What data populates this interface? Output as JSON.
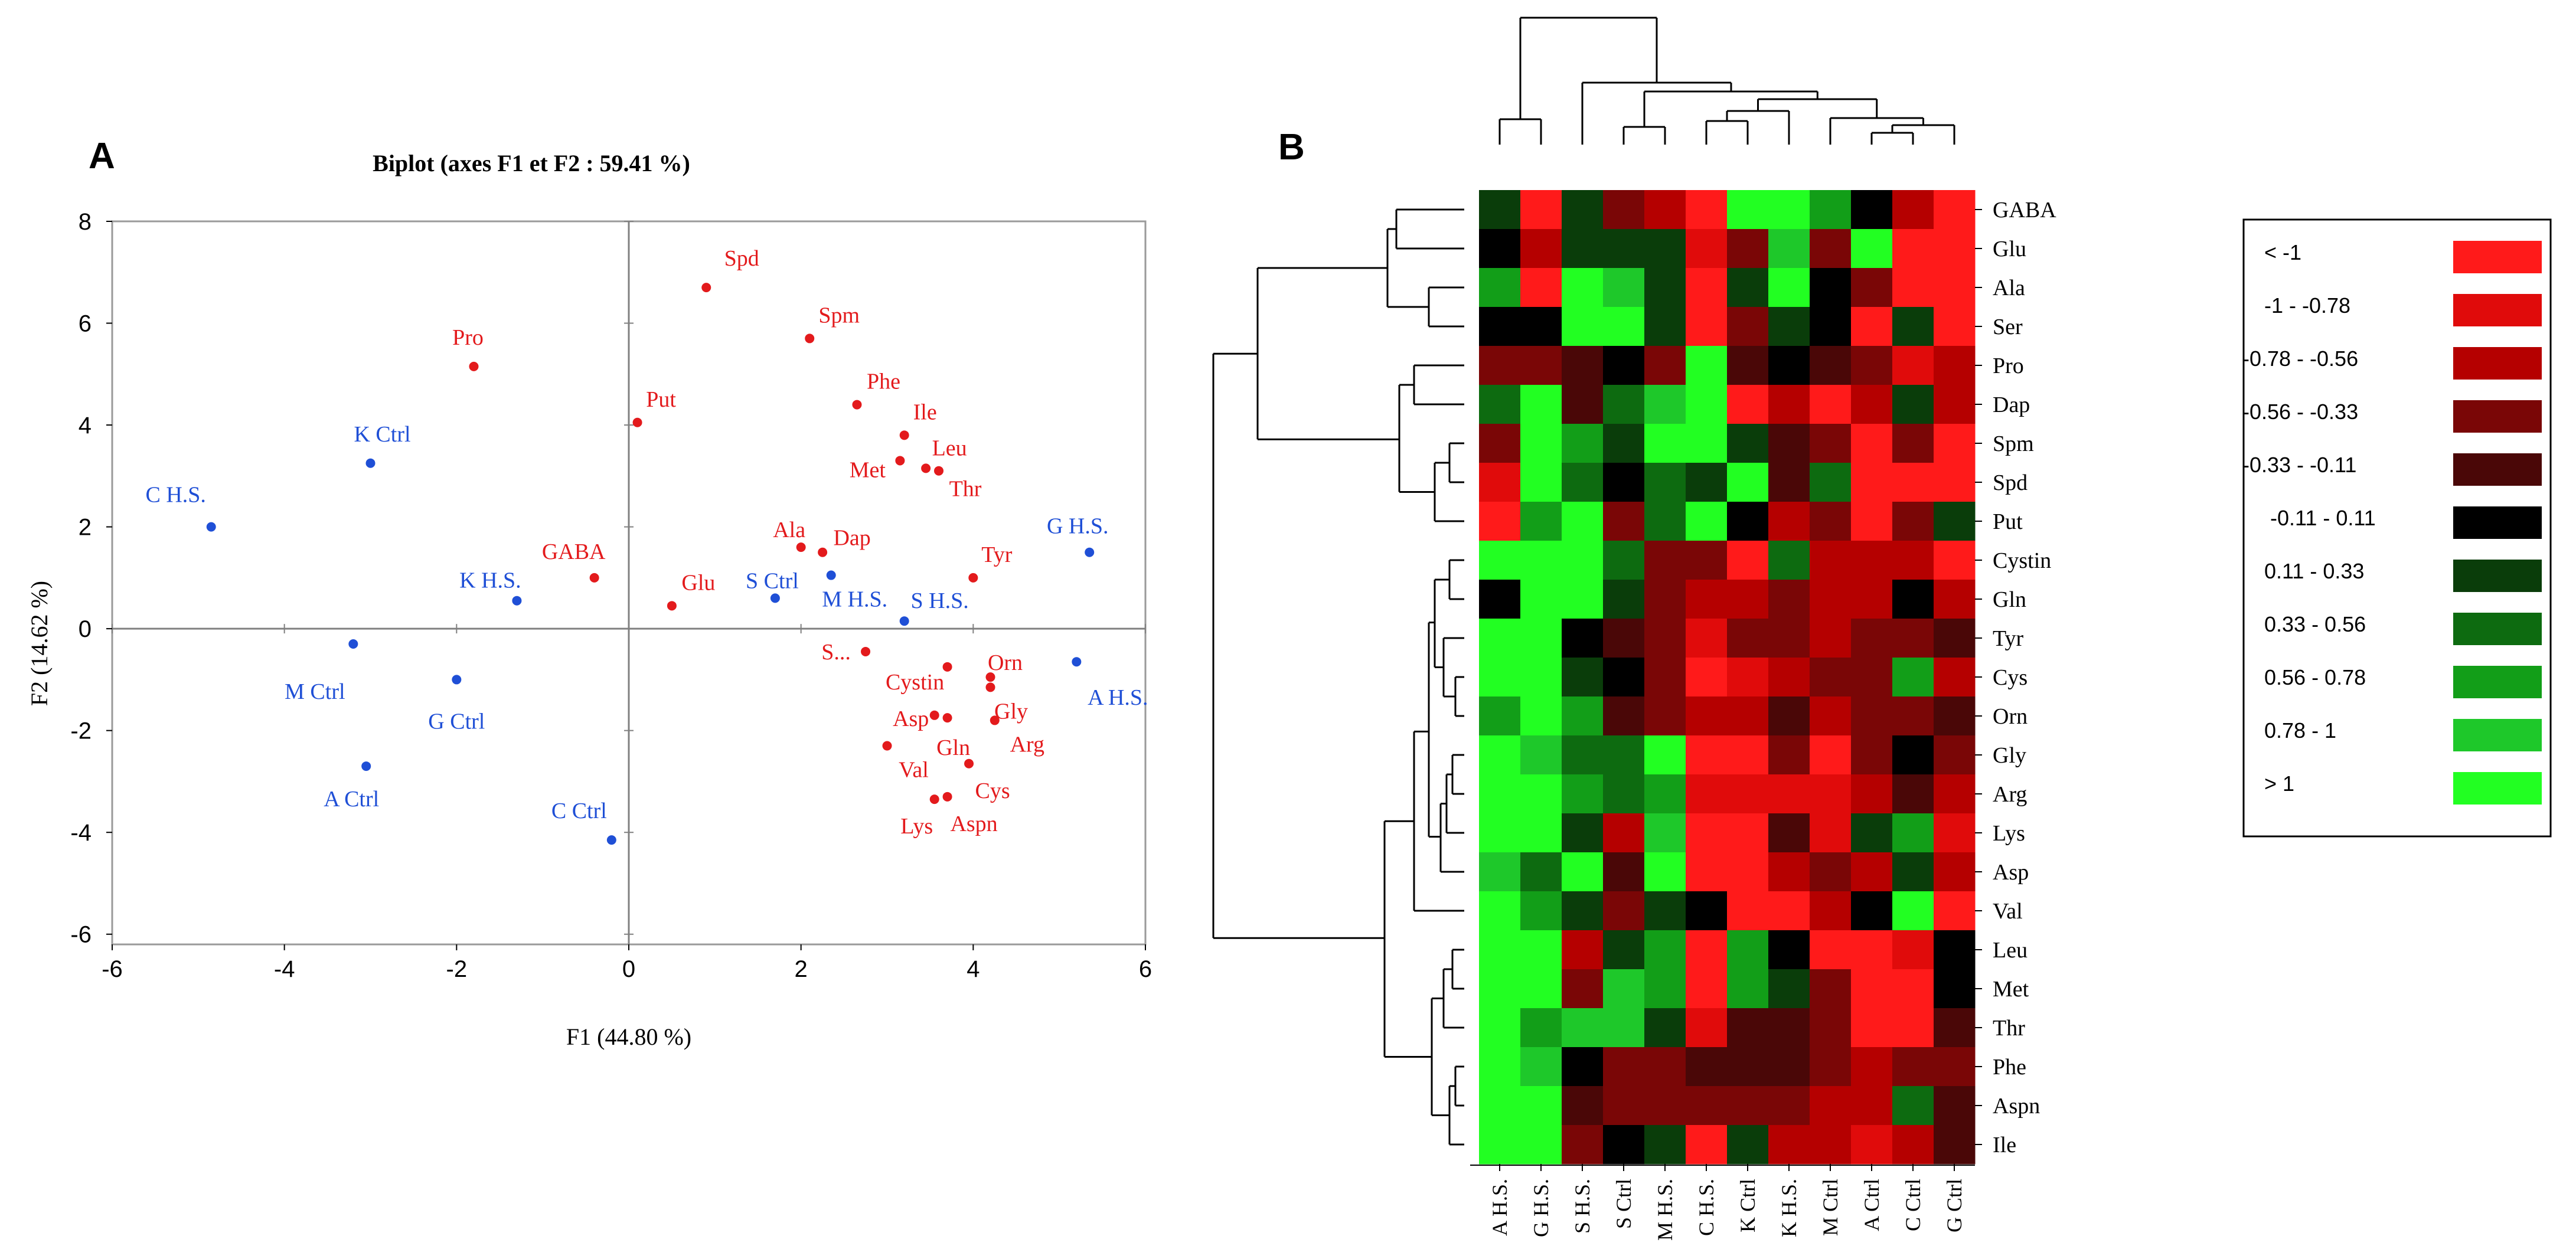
{
  "colors": {
    "observation": "#1f4fd6",
    "variable": "#e31a1c",
    "axis": "#808080",
    "frame": "#9a9a9a",
    "tree": "#000000"
  },
  "chart_data": [
    {
      "panel": "A",
      "type": "scatter",
      "title": "Biplot (axes F1  et F2 : 59.41 %)",
      "xlabel": "F1 (44.80  %)",
      "ylabel": "F2 (14.62  %)",
      "xlim": [
        -6,
        6
      ],
      "ylim": [
        -6.2,
        8
      ],
      "xticks": [
        -6,
        -4,
        -2,
        0,
        2,
        4,
        6
      ],
      "yticks": [
        -6,
        -4,
        -2,
        0,
        2,
        4,
        6,
        8
      ],
      "grid": false,
      "series": [
        {
          "name": "Observations",
          "points": [
            {
              "label": "C H.S.",
              "x": -4.85,
              "y": 2.0
            },
            {
              "label": "K Ctrl",
              "x": -3.0,
              "y": 3.25
            },
            {
              "label": "K H.S.",
              "x": -1.3,
              "y": 0.55
            },
            {
              "label": "M Ctrl",
              "x": -3.2,
              "y": -0.3
            },
            {
              "label": "G Ctrl",
              "x": -2.0,
              "y": -1.0
            },
            {
              "label": "A Ctrl",
              "x": -3.05,
              "y": -2.7
            },
            {
              "label": "C Ctrl",
              "x": -0.2,
              "y": -4.15
            },
            {
              "label": "S Ctrl",
              "x": 1.7,
              "y": 0.6
            },
            {
              "label": "M H.S.",
              "x": 2.35,
              "y": 1.05
            },
            {
              "label": "S H.S.",
              "x": 3.2,
              "y": 0.15
            },
            {
              "label": "G H.S.",
              "x": 5.35,
              "y": 1.5
            },
            {
              "label": "A H.S.",
              "x": 5.2,
              "y": -0.65
            }
          ]
        },
        {
          "name": "Variables",
          "points": [
            {
              "label": "Spd",
              "x": 0.9,
              "y": 6.7
            },
            {
              "label": "Spm",
              "x": 2.1,
              "y": 5.7
            },
            {
              "label": "Pro",
              "x": -1.8,
              "y": 5.15
            },
            {
              "label": "Put",
              "x": 0.1,
              "y": 4.05
            },
            {
              "label": "Phe",
              "x": 2.65,
              "y": 4.4
            },
            {
              "label": "Ile",
              "x": 3.2,
              "y": 3.8
            },
            {
              "label": "Met",
              "x": 3.15,
              "y": 3.3
            },
            {
              "label": "Leu",
              "x": 3.45,
              "y": 3.15
            },
            {
              "label": "Thr",
              "x": 3.6,
              "y": 3.1
            },
            {
              "label": "GABA",
              "x": -0.4,
              "y": 1.0
            },
            {
              "label": "Glu",
              "x": 0.5,
              "y": 0.45
            },
            {
              "label": "Ala",
              "x": 2.0,
              "y": 1.6
            },
            {
              "label": "Dap",
              "x": 2.25,
              "y": 1.5
            },
            {
              "label": "Tyr",
              "x": 4.0,
              "y": 1.0
            },
            {
              "label": "S...",
              "x": 2.75,
              "y": -0.45
            },
            {
              "label": "Cystin",
              "x": 3.7,
              "y": -0.75
            },
            {
              "label": "Orn",
              "x": 4.2,
              "y": -0.95
            },
            {
              "label": "Gly",
              "x": 4.2,
              "y": -1.15
            },
            {
              "label": "Asp",
              "x": 3.55,
              "y": -1.7
            },
            {
              "label": "Gln",
              "x": 3.7,
              "y": -1.75
            },
            {
              "label": "Arg",
              "x": 4.25,
              "y": -1.8
            },
            {
              "label": "Val",
              "x": 3.0,
              "y": -2.3
            },
            {
              "label": "Cys",
              "x": 3.95,
              "y": -2.65
            },
            {
              "label": "Lys",
              "x": 3.55,
              "y": -3.35
            },
            {
              "label": "Aspn",
              "x": 3.7,
              "y": -3.3
            }
          ]
        }
      ]
    },
    {
      "panel": "B",
      "type": "heatmap",
      "columns": [
        "A H.S.",
        "G H.S.",
        "S H.S.",
        "S Ctrl",
        "M H.S.",
        "C H.S.",
        "K Ctrl",
        "K H.S.",
        "M Ctrl",
        "A Ctrl",
        "C Ctrl",
        "G Ctrl"
      ],
      "rows": [
        "GABA",
        "Glu",
        "Ala",
        "Ser",
        "Pro",
        "Dap",
        "Spm",
        "Spd",
        "Put",
        "Cystin",
        "Gln",
        "Tyr",
        "Cys",
        "Orn",
        "Gly",
        "Arg",
        "Lys",
        "Asp",
        "Val",
        "Leu",
        "Met",
        "Thr",
        "Phe",
        "Aspn",
        "Ile"
      ],
      "legend": [
        {
          "label": "< -1",
          "color": "#ff1a1a"
        },
        {
          "label": "-1 - -0.78",
          "color": "#e00b0b"
        },
        {
          "label": "-0.78 - -0.56",
          "color": "#b50000"
        },
        {
          "label": "-0.56 - -0.33",
          "color": "#7a0606"
        },
        {
          "label": "-0.33 - -0.11",
          "color": "#4a0707"
        },
        {
          "label": "-0.11 - 0.11",
          "color": "#000000"
        },
        {
          "label": "0.11 - 0.33",
          "color": "#0a3d0a"
        },
        {
          "label": "0.33 - 0.56",
          "color": "#0d6b10"
        },
        {
          "label": "0.56 - 0.78",
          "color": "#129e18"
        },
        {
          "label": "0.78 - 1",
          "color": "#1ec82a"
        },
        {
          "label": "> 1",
          "color": "#22ff22"
        }
      ],
      "values": [
        [
          6,
          0,
          6,
          3,
          2,
          0,
          10,
          10,
          8,
          5,
          2,
          0
        ],
        [
          5,
          2,
          6,
          6,
          6,
          1,
          3,
          9,
          3,
          10,
          0,
          0
        ],
        [
          8,
          0,
          10,
          9,
          6,
          0,
          6,
          10,
          5,
          3,
          0,
          0
        ],
        [
          5,
          5,
          10,
          10,
          6,
          0,
          3,
          6,
          5,
          0,
          6,
          0
        ],
        [
          3,
          3,
          4,
          5,
          3,
          10,
          4,
          5,
          4,
          3,
          1,
          2
        ],
        [
          7,
          10,
          4,
          7,
          9,
          10,
          0,
          2,
          0,
          2,
          6,
          2
        ],
        [
          3,
          10,
          8,
          6,
          10,
          10,
          6,
          4,
          3,
          0,
          3,
          0
        ],
        [
          1,
          10,
          7,
          5,
          7,
          6,
          10,
          4,
          7,
          0,
          0,
          0
        ],
        [
          0,
          8,
          10,
          3,
          7,
          10,
          5,
          2,
          3,
          0,
          3,
          6
        ],
        [
          10,
          10,
          10,
          7,
          3,
          3,
          0,
          7,
          2,
          2,
          2,
          0
        ],
        [
          5,
          10,
          10,
          6,
          3,
          2,
          2,
          3,
          2,
          2,
          5,
          2
        ],
        [
          10,
          10,
          5,
          4,
          3,
          1,
          3,
          3,
          2,
          3,
          3,
          4
        ],
        [
          10,
          10,
          6,
          5,
          3,
          0,
          1,
          2,
          3,
          3,
          8,
          2
        ],
        [
          8,
          10,
          8,
          4,
          3,
          2,
          2,
          4,
          2,
          3,
          3,
          4
        ],
        [
          10,
          9,
          7,
          7,
          10,
          0,
          0,
          3,
          0,
          3,
          5,
          3
        ],
        [
          10,
          10,
          8,
          7,
          8,
          1,
          1,
          1,
          1,
          2,
          4,
          2
        ],
        [
          10,
          10,
          6,
          2,
          9,
          0,
          0,
          4,
          1,
          6,
          8,
          1
        ],
        [
          9,
          7,
          10,
          4,
          10,
          0,
          0,
          2,
          3,
          2,
          6,
          2
        ],
        [
          10,
          8,
          6,
          3,
          6,
          5,
          0,
          0,
          2,
          5,
          10,
          0
        ],
        [
          10,
          10,
          2,
          6,
          8,
          0,
          8,
          5,
          0,
          0,
          1,
          5
        ],
        [
          10,
          10,
          3,
          9,
          8,
          0,
          8,
          6,
          3,
          0,
          0,
          5
        ],
        [
          10,
          8,
          9,
          9,
          6,
          1,
          4,
          4,
          3,
          0,
          0,
          4
        ],
        [
          10,
          9,
          5,
          3,
          3,
          4,
          4,
          4,
          3,
          2,
          3,
          3
        ],
        [
          10,
          10,
          4,
          3,
          3,
          3,
          3,
          3,
          2,
          2,
          7,
          4
        ],
        [
          10,
          10,
          3,
          5,
          6,
          0,
          6,
          2,
          2,
          1,
          2,
          4
        ]
      ]
    }
  ],
  "panel_labels": {
    "a": "A",
    "b": "B"
  }
}
